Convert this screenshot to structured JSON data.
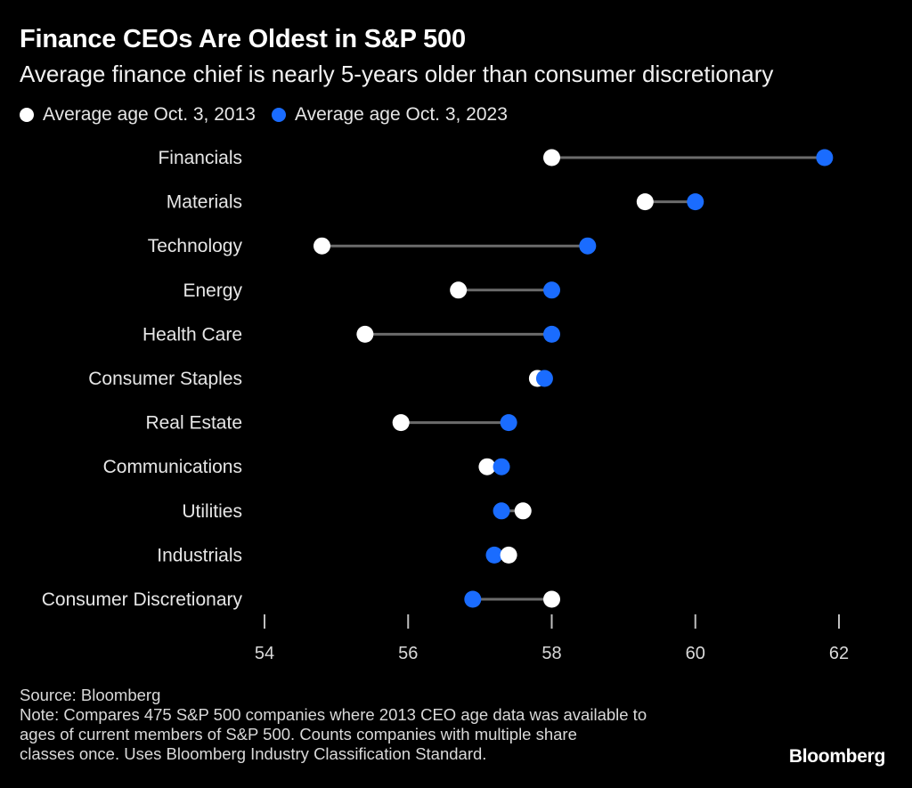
{
  "header": {
    "title": "Finance CEOs Are Oldest in S&P 500",
    "subtitle": "Average finance chief is nearly 5-years older than consumer discretionary"
  },
  "legend": {
    "items": [
      {
        "label": "Average age Oct. 3, 2013",
        "color": "#ffffff"
      },
      {
        "label": "Average age Oct. 3, 2023",
        "color": "#1a6cff"
      }
    ]
  },
  "chart_data": {
    "type": "dumbbell",
    "categories": [
      "Financials",
      "Materials",
      "Technology",
      "Energy",
      "Health Care",
      "Consumer Staples",
      "Real Estate",
      "Communications",
      "Utilities",
      "Industrials",
      "Consumer Discretionary"
    ],
    "series": [
      {
        "name": "Average age Oct. 3, 2013",
        "values": [
          58.0,
          59.3,
          54.8,
          56.7,
          55.4,
          57.8,
          55.9,
          57.1,
          57.6,
          57.4,
          58.0
        ]
      },
      {
        "name": "Average age Oct. 3, 2023",
        "values": [
          61.8,
          60.0,
          58.5,
          58.0,
          58.0,
          57.9,
          57.4,
          57.3,
          57.3,
          57.2,
          56.9
        ]
      }
    ],
    "xlim": [
      54,
      62
    ],
    "xticks": [
      54,
      56,
      58,
      60,
      62
    ],
    "xlabel": "",
    "ylabel": "",
    "grid": false,
    "legend_position": "top-left",
    "colors": {
      "connector": "#6b6b6b",
      "series_2013": "#ffffff",
      "series_2023": "#1a6cff"
    }
  },
  "footer": {
    "source": "Source: Bloomberg",
    "note_lines": [
      "Note: Compares 475 S&P 500 companies where 2013 CEO age data was available to",
      "ages of current members of S&P 500. Counts companies with multiple share",
      "classes once. Uses Bloomberg Industry Classification Standard."
    ],
    "brand": "Bloomberg"
  }
}
